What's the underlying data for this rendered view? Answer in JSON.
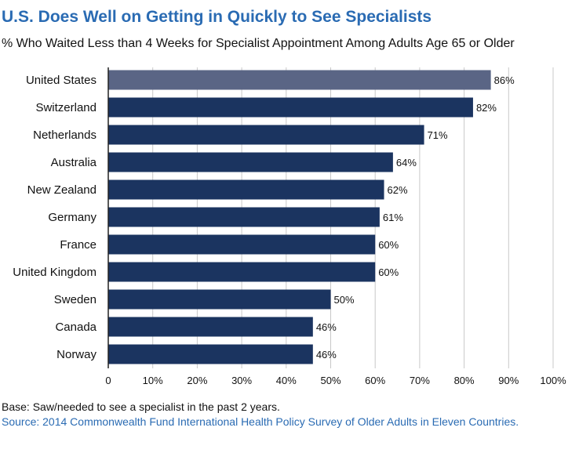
{
  "colors": {
    "accent": "#2a6bb3",
    "bar_default": "#1b3460",
    "bar_highlight": "#5a6585",
    "gridline": "#c8c8c8"
  },
  "footer": {
    "base": "Base: Saw/needed to see a specialist in the past 2 years.",
    "source": "Source: 2014 Commonwealth Fund International Health Policy Survey of Older Adults in Eleven Countries."
  },
  "chart_data": {
    "type": "bar",
    "orientation": "horizontal",
    "title": "U.S. Does Well on Getting in Quickly to See Specialists",
    "subtitle": "% Who Waited Less than 4 Weeks for Specialist Appointment Among Adults Age 65 or Older",
    "xlabel": "",
    "ylabel": "",
    "xlim": [
      0,
      100
    ],
    "grid": true,
    "ticks": [
      0,
      10,
      20,
      30,
      40,
      50,
      60,
      70,
      80,
      90,
      100
    ],
    "tick_labels": [
      "0",
      "10%",
      "20%",
      "30%",
      "40%",
      "50%",
      "60%",
      "70%",
      "80%",
      "90%",
      "100%"
    ],
    "categories": [
      "United States",
      "Switzerland",
      "Netherlands",
      "Australia",
      "New Zealand",
      "Germany",
      "France",
      "United Kingdom",
      "Sweden",
      "Canada",
      "Norway"
    ],
    "values": [
      86,
      82,
      71,
      64,
      62,
      61,
      60,
      60,
      50,
      46,
      46
    ],
    "value_labels": [
      "86%",
      "82%",
      "71%",
      "64%",
      "62%",
      "61%",
      "60%",
      "60%",
      "50%",
      "46%",
      "46%"
    ],
    "highlight": "United States"
  }
}
